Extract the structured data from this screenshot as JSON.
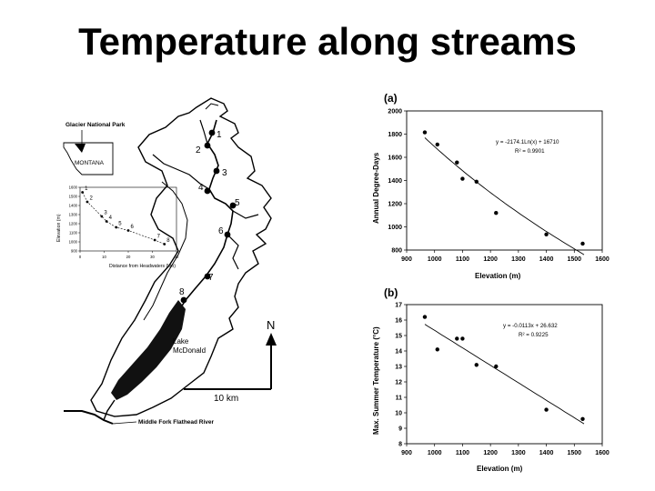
{
  "slide": {
    "title": "Temperature along streams"
  },
  "map": {
    "park_label": "Glacier National Park",
    "state_label": "MONTANA",
    "lake_label_1": "Lake",
    "lake_label_2": "McDonald",
    "river_label": "Middle Fork Flathead River",
    "scale_label": "10 km",
    "north_label": "N",
    "sites": [
      {
        "id": "1"
      },
      {
        "id": "2"
      },
      {
        "id": "3"
      },
      {
        "id": "4"
      },
      {
        "id": "5"
      },
      {
        "id": "6"
      },
      {
        "id": "7"
      },
      {
        "id": "8"
      }
    ],
    "inset_profile": {
      "xlabel": "Distance from Headwaters (km)",
      "ylabel": "Elevation (m)",
      "x_ticks": [
        "0",
        "10",
        "20",
        "30",
        "40"
      ],
      "y_ticks": [
        "1600",
        "1500",
        "1400",
        "1300",
        "1200",
        "1100",
        "1000",
        "900"
      ],
      "points": [
        {
          "label": "1",
          "km": 1,
          "elev": 1545
        },
        {
          "label": "2",
          "km": 3,
          "elev": 1440
        },
        {
          "label": "3",
          "km": 9,
          "elev": 1280
        },
        {
          "label": "4",
          "km": 11,
          "elev": 1225
        },
        {
          "label": "5",
          "km": 15,
          "elev": 1160
        },
        {
          "label": "6",
          "km": 20,
          "elev": 1125
        },
        {
          "label": "7",
          "km": 31,
          "elev": 1020
        },
        {
          "label": "8",
          "km": 35,
          "elev": 975
        }
      ]
    }
  },
  "chart_data": [
    {
      "type": "scatter",
      "panel_label": "(a)",
      "xlabel": "Elevation (m)",
      "ylabel": "Annual Degree-Days",
      "xlim": [
        900,
        1600
      ],
      "ylim": [
        800,
        2000
      ],
      "x_ticks": [
        900,
        1000,
        1100,
        1200,
        1300,
        1400,
        1500,
        1600
      ],
      "y_ticks": [
        800,
        1000,
        1200,
        1400,
        1600,
        1800,
        2000
      ],
      "equation": "y = -2174.1Ln(x) + 16710",
      "r2": "R² = 0.9901",
      "x": [
        965,
        1010,
        1080,
        1100,
        1150,
        1220,
        1400,
        1530
      ],
      "y": [
        1815,
        1710,
        1555,
        1415,
        1390,
        1120,
        935,
        855
      ]
    },
    {
      "type": "scatter",
      "panel_label": "(b)",
      "xlabel": "Elevation (m)",
      "ylabel": "Max. Summer Temperature (°C)",
      "xlim": [
        900,
        1600
      ],
      "ylim": [
        8,
        17
      ],
      "x_ticks": [
        900,
        1000,
        1100,
        1200,
        1300,
        1400,
        1500,
        1600
      ],
      "y_ticks": [
        8,
        9,
        10,
        11,
        12,
        13,
        14,
        15,
        16,
        17
      ],
      "equation": "y = -0.0113x + 26.632",
      "r2": "R² = 0.9225",
      "x": [
        965,
        1010,
        1080,
        1100,
        1150,
        1220,
        1400,
        1530
      ],
      "y": [
        16.2,
        14.1,
        14.8,
        14.8,
        13.1,
        13.0,
        10.2,
        9.6
      ]
    }
  ]
}
